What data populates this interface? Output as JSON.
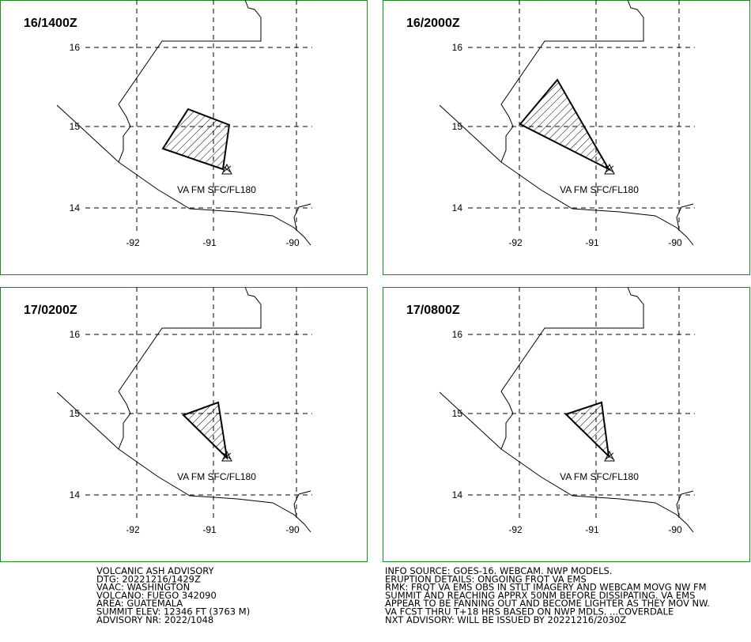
{
  "panels": [
    {
      "time": "16/1400Z"
    },
    {
      "time": "16/2000Z"
    },
    {
      "time": "17/0200Z"
    },
    {
      "time": "17/0800Z"
    }
  ],
  "lat_labels": [
    "16",
    "15",
    "14"
  ],
  "lon_labels": [
    "-92",
    "-91",
    "-90"
  ],
  "ash_label": "VA FM SFC/FL180",
  "footer_left": [
    "VOLCANIC ASH ADVISORY",
    "DTG: 20221216/1429Z",
    "VAAC: WASHINGTON",
    "VOLCANO: FUEGO 342090",
    "AREA: GUATEMALA",
    "SUMMIT ELEV: 12346 FT (3763 M)",
    "ADVISORY NR: 2022/1048"
  ],
  "footer_right": [
    "INFO SOURCE: GOES-16. WEBCAM. NWP MODELS.",
    "ERUPTION DETAILS: ONGOING FRQT VA EMS",
    "RMK: FRQT VA EMS OBS IN STLT IMAGERY AND WEBCAM MOVG NW FM",
    "SUMMIT AND REACHING APPRX 50NM BEFORE DISSIPATING. VA EMS",
    "APPEAR TO BE FANNING OUT AND BECOME LIGHTER AS THEY MOV NW.",
    "VA FCST THRU T+18 HRS BASED ON NWP MDLS. ...COVERDALE",
    "NXT ADVISORY: WILL BE ISSUED BY 20221216/2030Z"
  ]
}
